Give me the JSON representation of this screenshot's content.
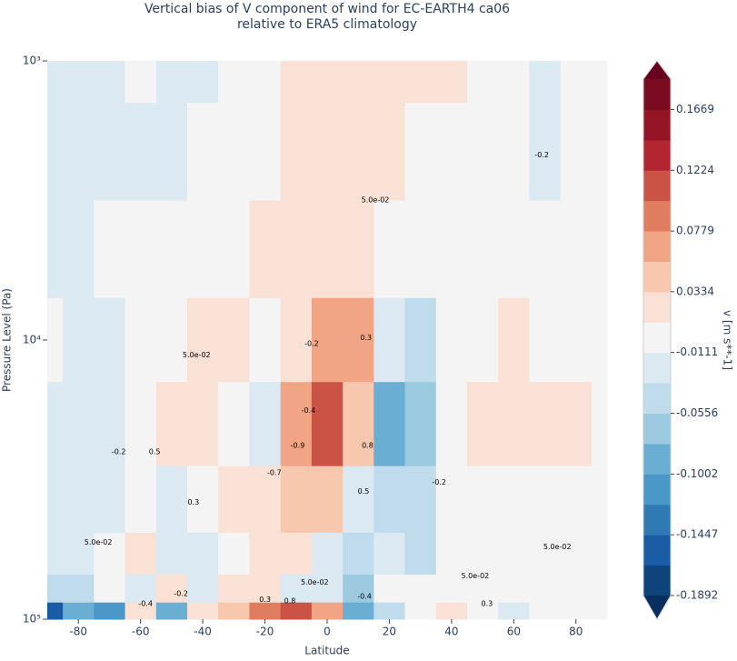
{
  "chart_data": {
    "type": "contourf",
    "title": "Vertical bias of V component of wind for EC-EARTH4 ca06",
    "subtitle": "relative to ERA5 climatology",
    "x_label": "Latitude",
    "y_label": "Pressure Level (Pa)",
    "colorbar_label": "v [m s**-1]",
    "x": [
      -90,
      -80,
      -70,
      -60,
      -50,
      -40,
      -30,
      -20,
      -10,
      0,
      10,
      20,
      30,
      40,
      50,
      60,
      70,
      80,
      90
    ],
    "y": [
      1000,
      2000,
      5000,
      10000,
      20000,
      40000,
      60000,
      80000,
      95000
    ],
    "z": [
      [
        -0.02,
        -0.02,
        -0.015,
        -0.01,
        -0.015,
        -0.02,
        -0.01,
        0.0,
        0.015,
        0.02,
        0.02,
        0.02,
        0.02,
        0.015,
        0,
        0,
        -0.015,
        -0.01,
        0
      ],
      [
        -0.02,
        -0.02,
        -0.015,
        -0.02,
        -0.02,
        -0.01,
        0,
        0.01,
        0.02,
        0.02,
        0.02,
        0.015,
        0,
        0,
        0,
        -0.01,
        -0.015,
        -0.01,
        0
      ],
      [
        -0.015,
        -0.015,
        -0.01,
        0,
        -0.01,
        0,
        0.01,
        0.02,
        0.03,
        0.015,
        0.02,
        0,
        0,
        0,
        0,
        0,
        0,
        0,
        0
      ],
      [
        -0.01,
        -0.015,
        -0.015,
        0,
        0,
        0.03,
        0.02,
        0,
        0.02,
        0.07,
        0.06,
        -0.02,
        -0.04,
        0,
        0,
        0.02,
        0,
        0,
        0
      ],
      [
        -0.02,
        -0.03,
        -0.03,
        -0.01,
        0.03,
        0.03,
        -0.01,
        -0.02,
        0.06,
        0.12,
        0.05,
        -0.1,
        -0.06,
        0,
        0.02,
        0.03,
        0.03,
        0.02,
        0
      ],
      [
        -0.02,
        -0.03,
        -0.02,
        -0.01,
        -0.02,
        -0.01,
        0.02,
        0.03,
        0.05,
        0.04,
        -0.02,
        -0.04,
        -0.04,
        0,
        0,
        0,
        0,
        0,
        0
      ],
      [
        -0.03,
        -0.02,
        0,
        0.02,
        -0.03,
        -0.03,
        0,
        0.02,
        0.02,
        -0.02,
        -0.05,
        -0.03,
        -0.05,
        0,
        0,
        -0.01,
        0,
        0,
        -0.01
      ],
      [
        -0.04,
        -0.05,
        0.01,
        -0.03,
        0.02,
        -0.02,
        0.02,
        0.03,
        -0.02,
        -0.03,
        -0.06,
        0.01,
        -0.01,
        0,
        0,
        0,
        0,
        0,
        0
      ],
      [
        -0.15,
        -0.08,
        -0.12,
        0.03,
        -0.1,
        0.02,
        0.04,
        0.08,
        0.12,
        0.06,
        -0.08,
        -0.04,
        0.01,
        0.02,
        0,
        -0.02,
        0,
        0.01,
        0
      ]
    ],
    "xlim": [
      -90,
      90
    ],
    "xticks": [
      -80,
      -60,
      -40,
      -20,
      0,
      20,
      40,
      60,
      80
    ],
    "ylim": [
      1000,
      100000
    ],
    "yscale": "log",
    "y_inverted": true,
    "yticks": [
      {
        "value": 1000,
        "label": "10³"
      },
      {
        "value": 10000,
        "label": "10⁴"
      },
      {
        "value": 100000,
        "label": "10⁵"
      }
    ],
    "clim": [
      -0.1892,
      0.1892
    ],
    "colors": [
      "#0f437b",
      "#1a5ba6",
      "#2f79b5",
      "#4a98c7",
      "#6aaed3",
      "#9ccae1",
      "#c0dbeb",
      "#dbe9f2",
      "#f4f4f4",
      "#f9e2d5",
      "#f7c8ad",
      "#f2a584",
      "#e07d5f",
      "#ca5346",
      "#b2242f",
      "#951424",
      "#7a0b20"
    ],
    "under_color": "#07305f",
    "over_color": "#67001f",
    "cticks": [
      0.1669,
      0.1224,
      0.0779,
      0.0334,
      -0.0111,
      -0.0556,
      -0.1002,
      -0.1447,
      -0.1892
    ],
    "contour_labels": [
      {
        "value": 0.05,
        "label": "5.0e-02",
        "lat": 15.5,
        "pressure": 3150
      },
      {
        "value": -0.2,
        "lat": 69,
        "pressure": 2170
      },
      {
        "value": 0.05,
        "label": "5.0e-02",
        "lat": -42,
        "pressure": 11300
      },
      {
        "value": -0.2,
        "lat": -5,
        "pressure": 10300
      },
      {
        "value": 0.3,
        "lat": 12.5,
        "pressure": 9800
      },
      {
        "value": -0.2,
        "lat": -67,
        "pressure": 25200
      },
      {
        "value": 0.5,
        "lat": -55.5,
        "pressure": 25200
      },
      {
        "value": 0.3,
        "lat": -43,
        "pressure": 38200
      },
      {
        "value": -0.4,
        "lat": -6,
        "pressure": 17900
      },
      {
        "value": -0.9,
        "lat": -9.5,
        "pressure": 23900
      },
      {
        "value": -0.7,
        "lat": -17,
        "pressure": 29900
      },
      {
        "value": 0.8,
        "lat": 13,
        "pressure": 23900
      },
      {
        "value": 0.5,
        "lat": 11.7,
        "pressure": 34800
      },
      {
        "value": -0.2,
        "lat": 36,
        "pressure": 32300
      },
      {
        "value": 0.05,
        "label": "5.0e-02",
        "lat": -73.6,
        "pressure": 53000
      },
      {
        "value": 0.05,
        "label": "5.0e-02",
        "lat": 74,
        "pressure": 55000
      },
      {
        "value": 0.05,
        "label": "5.0e-02",
        "lat": 47.6,
        "pressure": 70000
      },
      {
        "value": 0.05,
        "label": "5.0e-02",
        "lat": -4,
        "pressure": 73800
      },
      {
        "value": -0.2,
        "lat": -47,
        "pressure": 81000
      },
      {
        "value": -0.4,
        "lat": -58.4,
        "pressure": 88000
      },
      {
        "value": 0.3,
        "lat": -20,
        "pressure": 85000
      },
      {
        "value": 0.8,
        "lat": -12,
        "pressure": 86000
      },
      {
        "value": 0.3,
        "lat": 51.4,
        "pressure": 88000
      },
      {
        "value": -0.4,
        "lat": 12,
        "pressure": 83000
      }
    ]
  }
}
